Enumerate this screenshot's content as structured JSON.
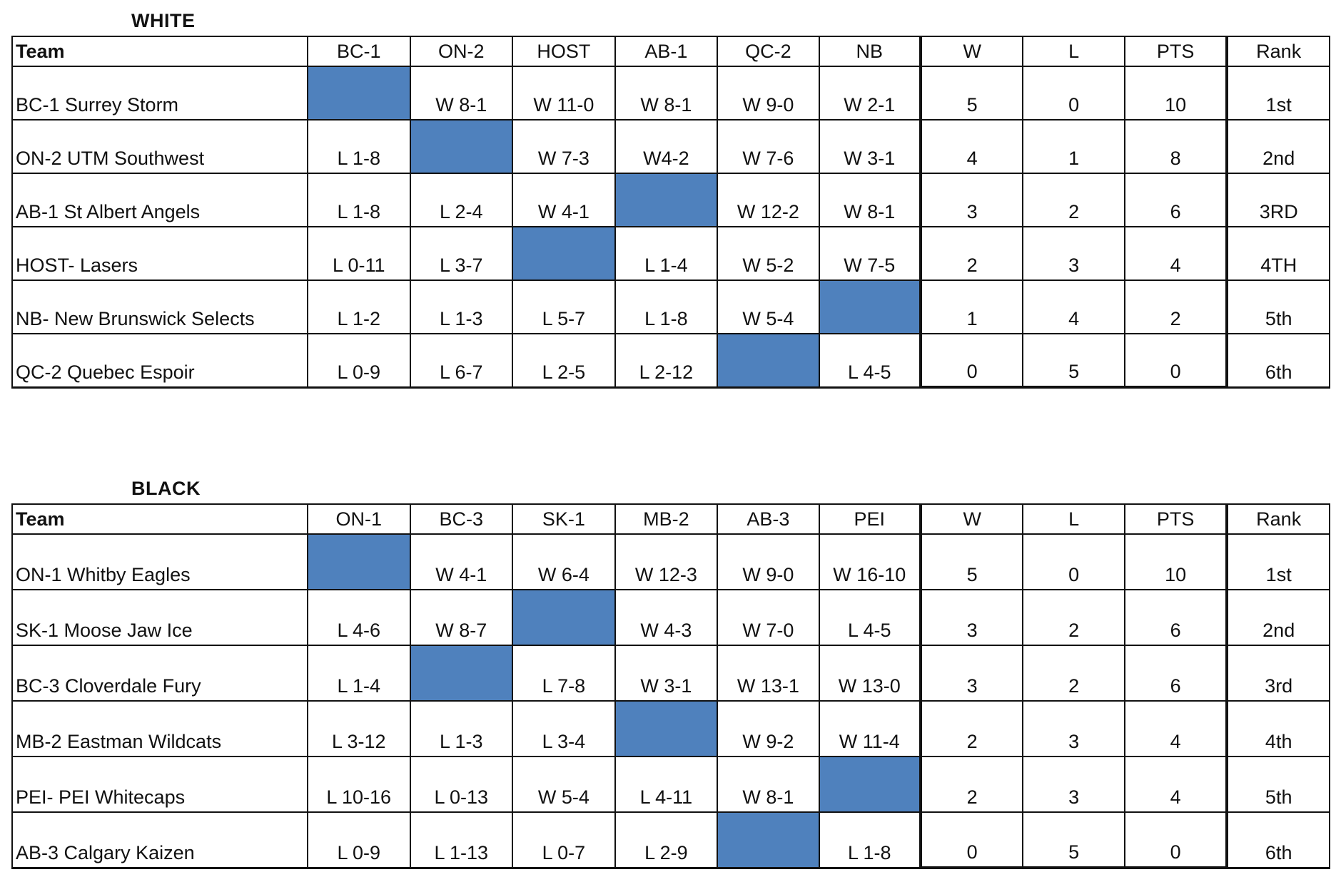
{
  "pools": [
    {
      "title": "WHITE",
      "headers": [
        "Team",
        "BC-1",
        "ON-2",
        "HOST",
        "AB-1",
        "QC-2",
        "NB",
        "W",
        "L",
        "PTS",
        "Rank"
      ],
      "rows": [
        {
          "team": "BC-1 Surrey Storm",
          "results": [
            "",
            "W 8-1",
            "W 11-0",
            "W 8-1",
            "W 9-0",
            "W 2-1"
          ],
          "blank": 0,
          "w": "5",
          "l": "0",
          "pts": "10",
          "rank": "1st"
        },
        {
          "team": "ON-2 UTM Southwest",
          "results": [
            "L 1-8",
            "",
            "W 7-3",
            "W4-2",
            "W 7-6",
            "W 3-1"
          ],
          "blank": 1,
          "w": "4",
          "l": "1",
          "pts": "8",
          "rank": "2nd"
        },
        {
          "team": "AB-1 St Albert Angels",
          "results": [
            "L 1-8",
            "L 2-4",
            "W 4-1",
            "",
            "W 12-2",
            "W 8-1"
          ],
          "blank": 3,
          "w": "3",
          "l": "2",
          "pts": "6",
          "rank": "3RD"
        },
        {
          "team": "HOST- Lasers",
          "results": [
            "L 0-11",
            "L 3-7",
            "",
            "L 1-4",
            "W 5-2",
            "W 7-5"
          ],
          "blank": 2,
          "w": "2",
          "l": "3",
          "pts": "4",
          "rank": "4TH"
        },
        {
          "team": "NB- New Brunswick Selects",
          "results": [
            "L 1-2",
            "L 1-3",
            "L 5-7",
            "L 1-8",
            "W 5-4",
            ""
          ],
          "blank": 5,
          "w": "1",
          "l": "4",
          "pts": "2",
          "rank": "5th"
        },
        {
          "team": "QC-2 Quebec Espoir",
          "results": [
            "L 0-9",
            "L 6-7",
            "L 2-5",
            "L 2-12",
            "",
            "L 4-5"
          ],
          "blank": 4,
          "w": "0",
          "l": "5",
          "pts": "0",
          "rank": "6th"
        }
      ]
    },
    {
      "title": "BLACK",
      "headers": [
        "Team",
        "ON-1",
        "BC-3",
        "SK-1",
        "MB-2",
        "AB-3",
        "PEI",
        "W",
        "L",
        "PTS",
        "Rank"
      ],
      "rows": [
        {
          "team": "ON-1 Whitby Eagles",
          "results": [
            "",
            "W 4-1",
            "W 6-4",
            "W 12-3",
            "W 9-0",
            "W 16-10"
          ],
          "blank": 0,
          "w": "5",
          "l": "0",
          "pts": "10",
          "rank": "1st"
        },
        {
          "team": "SK-1 Moose Jaw Ice",
          "results": [
            "L 4-6",
            "W 8-7",
            "",
            "W 4-3",
            "W 7-0",
            "L 4-5"
          ],
          "blank": 2,
          "w": "3",
          "l": "2",
          "pts": "6",
          "rank": "2nd"
        },
        {
          "team": "BC-3 Cloverdale Fury",
          "results": [
            "L 1-4",
            "",
            "L 7-8",
            "W 3-1",
            "W 13-1",
            "W 13-0"
          ],
          "blank": 1,
          "w": "3",
          "l": "2",
          "pts": "6",
          "rank": "3rd"
        },
        {
          "team": "MB-2 Eastman Wildcats",
          "results": [
            "L 3-12",
            "L 1-3",
            "L 3-4",
            "",
            "W 9-2",
            "W 11-4"
          ],
          "blank": 3,
          "w": "2",
          "l": "3",
          "pts": "4",
          "rank": "4th"
        },
        {
          "team": "PEI- PEI Whitecaps",
          "results": [
            "L 10-16",
            "L 0-13",
            "W 5-4",
            "L 4-11",
            "W 8-1",
            ""
          ],
          "blank": 5,
          "w": "2",
          "l": "3",
          "pts": "4",
          "rank": "5th"
        },
        {
          "team": "AB-3 Calgary Kaizen",
          "results": [
            "L 0-9",
            "L 1-13",
            "L 0-7",
            "L 2-9",
            "",
            "L 1-8"
          ],
          "blank": 4,
          "w": "0",
          "l": "5",
          "pts": "0",
          "rank": "6th"
        }
      ]
    }
  ],
  "colors": {
    "blank_cell": "#4f81bd"
  }
}
